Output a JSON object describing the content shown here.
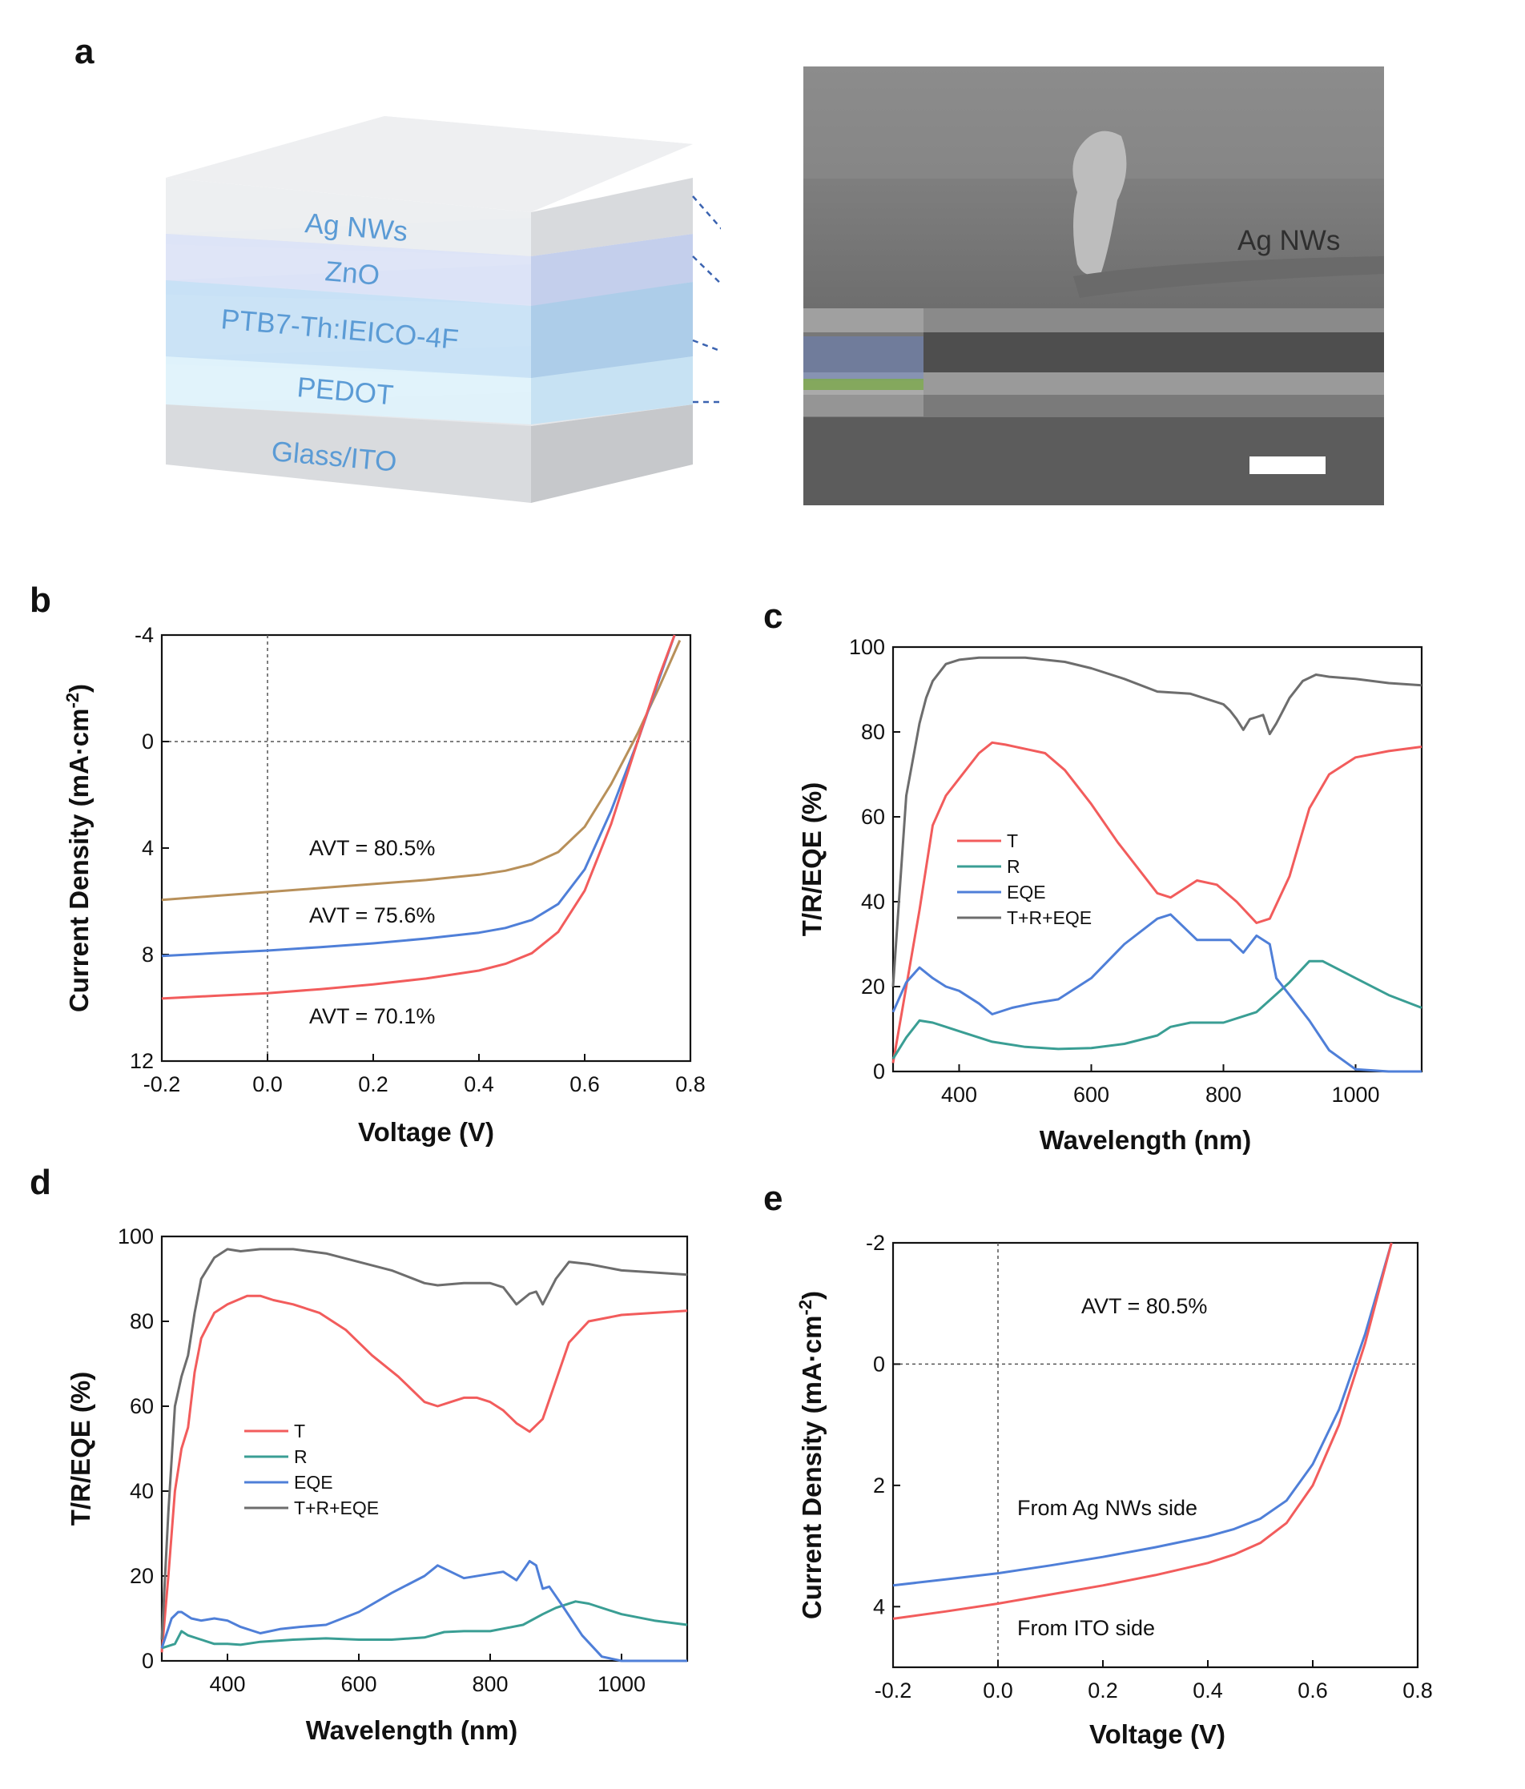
{
  "panels": {
    "a": "a",
    "b": "b",
    "c": "c",
    "d": "d",
    "e": "e"
  },
  "schematic": {
    "layers": [
      "Ag NWs",
      "ZnO",
      "PTB7-Th:IEICO-4F",
      "PEDOT",
      "Glass/ITO"
    ],
    "sem_label": "Ag NWs"
  },
  "colors": {
    "T": "#f25c5c",
    "R": "#3a9e94",
    "EQE": "#4f7fd8",
    "TRE": "#6d6d6d",
    "gold": "#b8905a",
    "layer_text": "#5b9bd5"
  },
  "chart_data": [
    {
      "id": "b",
      "type": "line",
      "xlabel": "Voltage (V)",
      "ylabel": "Current Density (mA·cm-2)",
      "ylabel_main": "Current Density (mA·cm",
      "ylabel_sup": "-2",
      "ylabel_end": ")",
      "xlim": [
        -0.2,
        0.8
      ],
      "ylim": [
        12,
        -4
      ],
      "y_inverted": true,
      "xticks": [
        "-0.2",
        "0.0",
        "0.2",
        "0.4",
        "0.6",
        "0.8"
      ],
      "yticks": [
        "-4",
        "0",
        "4",
        "8",
        "12"
      ],
      "annotations": [
        "AVT = 80.5%",
        "AVT = 75.6%",
        "AVT = 70.1%"
      ],
      "series": [
        {
          "color": "#b8905a",
          "x": [
            -0.2,
            -0.1,
            0,
            0.1,
            0.2,
            0.3,
            0.4,
            0.45,
            0.5,
            0.55,
            0.6,
            0.65,
            0.7,
            0.74,
            0.78
          ],
          "y": [
            5.95,
            5.8,
            5.65,
            5.5,
            5.35,
            5.2,
            5.0,
            4.85,
            4.6,
            4.15,
            3.2,
            1.6,
            -0.3,
            -2.0,
            -3.8
          ]
        },
        {
          "color": "#4f7fd8",
          "x": [
            -0.2,
            -0.1,
            0,
            0.1,
            0.2,
            0.3,
            0.4,
            0.45,
            0.5,
            0.55,
            0.6,
            0.65,
            0.7,
            0.74,
            0.77
          ],
          "y": [
            8.05,
            7.95,
            7.85,
            7.72,
            7.58,
            7.4,
            7.18,
            7.0,
            6.7,
            6.1,
            4.8,
            2.6,
            0,
            -2.3,
            -4.0
          ]
        },
        {
          "color": "#f25c5c",
          "x": [
            -0.2,
            -0.1,
            0,
            0.1,
            0.2,
            0.3,
            0.4,
            0.45,
            0.5,
            0.55,
            0.6,
            0.65,
            0.7,
            0.74,
            0.77
          ],
          "y": [
            9.65,
            9.55,
            9.45,
            9.3,
            9.12,
            8.9,
            8.6,
            8.35,
            7.95,
            7.15,
            5.6,
            3.1,
            0,
            -2.4,
            -4.0
          ]
        }
      ]
    },
    {
      "id": "c",
      "type": "line",
      "xlabel": "Wavelength (nm)",
      "ylabel": "T/R/EQE (%)",
      "xlim": [
        300,
        1100
      ],
      "ylim": [
        0,
        100
      ],
      "xticks": [
        "400",
        "600",
        "800",
        "1000"
      ],
      "yticks": [
        "0",
        "20",
        "40",
        "60",
        "80",
        "100"
      ],
      "legend": [
        "T",
        "R",
        "EQE",
        "T+R+EQE"
      ],
      "series": [
        {
          "name": "T",
          "color": "#f25c5c",
          "x": [
            300,
            320,
            340,
            360,
            380,
            400,
            430,
            450,
            470,
            500,
            530,
            560,
            600,
            640,
            680,
            700,
            720,
            760,
            790,
            820,
            850,
            870,
            900,
            930,
            960,
            1000,
            1050,
            1100
          ],
          "y": [
            2,
            20,
            38,
            58,
            65,
            69,
            75,
            77.5,
            77,
            76,
            75,
            71,
            63,
            54,
            46,
            42,
            41,
            45,
            44,
            40,
            35,
            36,
            46,
            62,
            70,
            74,
            75.5,
            76.5
          ]
        },
        {
          "name": "R",
          "color": "#3a9e94",
          "x": [
            300,
            320,
            340,
            360,
            380,
            400,
            450,
            500,
            550,
            600,
            650,
            700,
            720,
            750,
            800,
            850,
            900,
            930,
            950,
            1000,
            1050,
            1100
          ],
          "y": [
            3,
            8,
            12,
            11.5,
            10.5,
            9.5,
            7,
            5.8,
            5.3,
            5.5,
            6.5,
            8.5,
            10.5,
            11.5,
            11.5,
            14,
            21,
            26,
            26,
            22,
            18,
            15
          ]
        },
        {
          "name": "EQE",
          "color": "#4f7fd8",
          "x": [
            300,
            320,
            340,
            360,
            380,
            400,
            430,
            450,
            480,
            510,
            550,
            600,
            650,
            700,
            720,
            760,
            790,
            810,
            830,
            850,
            870,
            880,
            900,
            930,
            960,
            1000,
            1050,
            1100
          ],
          "y": [
            14,
            21,
            24.5,
            22,
            20,
            19,
            16,
            13.5,
            15,
            16,
            17,
            22,
            30,
            36,
            37,
            31,
            31,
            31,
            28,
            32,
            30,
            22,
            18,
            12,
            5,
            0.5,
            0,
            0
          ]
        },
        {
          "name": "T+R+EQE",
          "color": "#6d6d6d",
          "x": [
            300,
            320,
            340,
            350,
            360,
            380,
            400,
            430,
            500,
            560,
            600,
            650,
            700,
            750,
            800,
            810,
            820,
            830,
            840,
            850,
            860,
            870,
            880,
            890,
            900,
            920,
            940,
            960,
            1000,
            1050,
            1100
          ],
          "y": [
            20,
            65,
            82,
            88,
            92,
            96,
            97,
            97.5,
            97.5,
            96.5,
            95,
            92.5,
            89.5,
            89,
            86.5,
            85,
            83,
            80.5,
            83,
            83.5,
            84,
            79.5,
            82,
            85,
            88,
            92,
            93.5,
            93,
            92.5,
            91.5,
            91
          ]
        }
      ]
    },
    {
      "id": "d",
      "type": "line",
      "xlabel": "Wavelength (nm)",
      "ylabel": "T/R/EQE (%)",
      "xlim": [
        300,
        1100
      ],
      "ylim": [
        0,
        100
      ],
      "xticks": [
        "400",
        "600",
        "800",
        "1000"
      ],
      "yticks": [
        "0",
        "20",
        "40",
        "60",
        "80",
        "100"
      ],
      "legend": [
        "T",
        "R",
        "EQE",
        "T+R+EQE"
      ],
      "series": [
        {
          "name": "T",
          "color": "#f25c5c",
          "x": [
            300,
            310,
            320,
            330,
            340,
            350,
            360,
            380,
            400,
            430,
            450,
            470,
            500,
            540,
            580,
            620,
            660,
            700,
            720,
            740,
            760,
            780,
            800,
            820,
            840,
            860,
            880,
            900,
            920,
            950,
            1000,
            1050,
            1100
          ],
          "y": [
            2,
            20,
            40,
            50,
            55,
            68,
            76,
            82,
            84,
            86,
            86,
            85,
            84,
            82,
            78,
            72,
            67,
            61,
            60,
            61,
            62,
            62,
            61,
            59,
            56,
            54,
            57,
            66,
            75,
            80,
            81.5,
            82,
            82.5
          ]
        },
        {
          "name": "R",
          "color": "#3a9e94",
          "x": [
            300,
            320,
            330,
            340,
            360,
            380,
            400,
            420,
            450,
            500,
            550,
            600,
            650,
            700,
            730,
            760,
            800,
            850,
            880,
            900,
            930,
            950,
            1000,
            1050,
            1100
          ],
          "y": [
            3,
            4,
            7,
            6,
            5,
            4,
            4,
            3.8,
            4.5,
            5,
            5.3,
            5,
            5,
            5.5,
            6.8,
            7,
            7,
            8.5,
            11,
            12.5,
            14,
            13.5,
            11,
            9.5,
            8.5
          ]
        },
        {
          "name": "EQE",
          "color": "#4f7fd8",
          "x": [
            300,
            315,
            325,
            330,
            345,
            360,
            380,
            400,
            420,
            450,
            480,
            510,
            550,
            600,
            650,
            700,
            720,
            760,
            800,
            820,
            840,
            860,
            870,
            880,
            890,
            910,
            940,
            970,
            1000,
            1050,
            1100
          ],
          "y": [
            3,
            10,
            11.5,
            11.5,
            10,
            9.5,
            10,
            9.5,
            8,
            6.5,
            7.5,
            8,
            8.5,
            11.5,
            16,
            20,
            22.5,
            19.5,
            20.5,
            21,
            19,
            23.5,
            22.5,
            17,
            17.5,
            13,
            6,
            1,
            0,
            0,
            0
          ]
        },
        {
          "name": "T+R+EQE",
          "color": "#6d6d6d",
          "x": [
            300,
            310,
            320,
            330,
            340,
            350,
            360,
            380,
            400,
            420,
            450,
            500,
            550,
            600,
            650,
            700,
            720,
            760,
            800,
            820,
            840,
            860,
            870,
            880,
            890,
            900,
            920,
            950,
            1000,
            1050,
            1100
          ],
          "y": [
            5,
            35,
            60,
            67,
            72,
            82,
            90,
            95,
            97,
            96.5,
            97,
            97,
            96,
            94,
            92,
            89,
            88.5,
            89,
            89,
            88,
            84,
            86.5,
            87,
            84,
            87,
            90,
            94,
            93.5,
            92,
            91.5,
            91
          ]
        }
      ]
    },
    {
      "id": "e",
      "type": "line",
      "xlabel": "Voltage (V)",
      "ylabel": "Current Density (mA·cm-2)",
      "ylabel_main": "Current Density (mA·cm",
      "ylabel_sup": "-2",
      "ylabel_end": ")",
      "xlim": [
        -0.2,
        0.8
      ],
      "ylim": [
        5,
        -2
      ],
      "y_inverted": true,
      "xticks": [
        "-0.2",
        "0.0",
        "0.2",
        "0.4",
        "0.6",
        "0.8"
      ],
      "yticks": [
        "-2",
        "0",
        "2",
        "4"
      ],
      "annotations": [
        "AVT = 80.5%",
        "From Ag NWs side",
        "From ITO side"
      ],
      "series": [
        {
          "name": "From Ag NWs side",
          "color": "#4f7fd8",
          "x": [
            -0.2,
            -0.1,
            0,
            0.1,
            0.2,
            0.3,
            0.4,
            0.45,
            0.5,
            0.55,
            0.6,
            0.65,
            0.7,
            0.75
          ],
          "y": [
            3.65,
            3.55,
            3.45,
            3.32,
            3.18,
            3.02,
            2.84,
            2.72,
            2.55,
            2.25,
            1.65,
            0.75,
            -0.5,
            -2.0
          ]
        },
        {
          "name": "From ITO side",
          "color": "#f25c5c",
          "x": [
            -0.2,
            -0.1,
            0,
            0.1,
            0.2,
            0.3,
            0.4,
            0.45,
            0.5,
            0.55,
            0.6,
            0.65,
            0.7,
            0.75
          ],
          "y": [
            4.2,
            4.08,
            3.95,
            3.8,
            3.65,
            3.48,
            3.28,
            3.14,
            2.95,
            2.62,
            2.0,
            1.0,
            -0.35,
            -2.0
          ]
        }
      ]
    }
  ]
}
